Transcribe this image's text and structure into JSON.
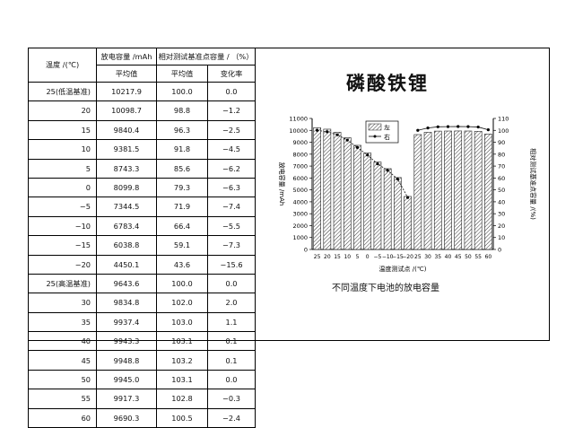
{
  "table": {
    "header": {
      "temp": "温度 /(℃)",
      "capacity": "放电容量 /mAh",
      "relative": "相对测试基准点容量 / （%）",
      "avg1": "平均值",
      "avg2": "平均值",
      "change": "变化率"
    },
    "rows": [
      {
        "t": "25(低温基准)",
        "c": "10217.9",
        "p": "100.0",
        "v": "0.0"
      },
      {
        "t": "20",
        "c": "10098.7",
        "p": "98.8",
        "v": "−1.2"
      },
      {
        "t": "15",
        "c": "9840.4",
        "p": "96.3",
        "v": "−2.5"
      },
      {
        "t": "10",
        "c": "9381.5",
        "p": "91.8",
        "v": "−4.5"
      },
      {
        "t": "5",
        "c": "8743.3",
        "p": "85.6",
        "v": "−6.2"
      },
      {
        "t": "0",
        "c": "8099.8",
        "p": "79.3",
        "v": "−6.3"
      },
      {
        "t": "−5",
        "c": "7344.5",
        "p": "71.9",
        "v": "−7.4"
      },
      {
        "t": "−10",
        "c": "6783.4",
        "p": "66.4",
        "v": "−5.5"
      },
      {
        "t": "−15",
        "c": "6038.8",
        "p": "59.1",
        "v": "−7.3"
      },
      {
        "t": "−20",
        "c": "4450.1",
        "p": "43.6",
        "v": "−15.6"
      },
      {
        "t": "25(高温基准)",
        "c": "9643.6",
        "p": "100.0",
        "v": "0.0"
      },
      {
        "t": "30",
        "c": "9834.8",
        "p": "102.0",
        "v": "2.0"
      },
      {
        "t": "35",
        "c": "9937.4",
        "p": "103.0",
        "v": "1.1"
      },
      {
        "t": "40",
        "c": "9943.3",
        "p": "103.1",
        "v": "0.1"
      },
      {
        "t": "45",
        "c": "9948.8",
        "p": "103.2",
        "v": "0.1"
      },
      {
        "t": "50",
        "c": "9945.0",
        "p": "103.1",
        "v": "0.0"
      },
      {
        "t": "55",
        "c": "9917.3",
        "p": "102.8",
        "v": "−0.3"
      },
      {
        "t": "60",
        "c": "9690.3",
        "p": "100.5",
        "v": "−2.4"
      }
    ]
  },
  "right_title": "磷酸铁锂",
  "chart_caption": "不同温度下电池的放电容量",
  "chart_data": {
    "type": "bar",
    "categories": [
      "25",
      "20",
      "15",
      "10",
      "5",
      "0",
      "−5",
      "−10",
      "−15",
      "−20",
      "25",
      "30",
      "35",
      "40",
      "45",
      "50",
      "55",
      "60"
    ],
    "series": [
      {
        "name": "左",
        "kind": "bar",
        "axis": "left",
        "values": [
          10217.9,
          10098.7,
          9840.4,
          9381.5,
          8743.3,
          8099.8,
          7344.5,
          6783.4,
          6038.8,
          4450.1,
          9643.6,
          9834.8,
          9937.4,
          9943.3,
          9948.8,
          9945.0,
          9917.3,
          9690.3
        ]
      },
      {
        "name": "右",
        "kind": "line",
        "axis": "right",
        "values": [
          100.0,
          98.8,
          96.3,
          91.8,
          85.6,
          79.3,
          71.9,
          66.4,
          59.1,
          43.6,
          100.0,
          102.0,
          103.0,
          103.1,
          103.2,
          103.1,
          102.8,
          100.5
        ]
      }
    ],
    "xlabel": "温度测试点 /(℃)",
    "ylabel": "放电容量 /mAh",
    "ylabel_right": "相对测试基准点容量 /(%)",
    "ylim": [
      0,
      11000
    ],
    "ylim_right": [
      0,
      110
    ],
    "yticks": [
      "0",
      "1000",
      "2000",
      "3000",
      "4000",
      "5000",
      "6000",
      "7000",
      "8000",
      "9000",
      "10000",
      "11000"
    ],
    "yticks_right": [
      "0",
      "10",
      "20",
      "30",
      "40",
      "50",
      "60",
      "70",
      "80",
      "90",
      "100",
      "110"
    ],
    "legend_position": "top-center",
    "grid": false,
    "bar_color": "#ffffff",
    "bar_hatch": "#333333",
    "line_color": "#111111"
  }
}
